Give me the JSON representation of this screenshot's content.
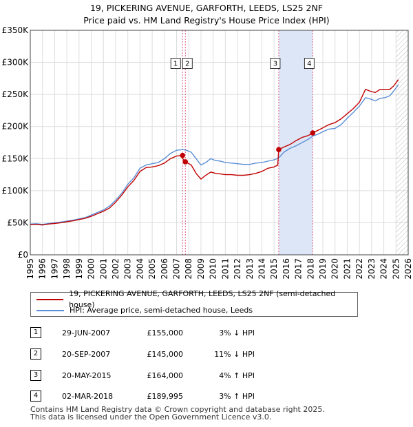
{
  "title_line1": "19, PICKERING AVENUE, GARFORTH, LEEDS, LS25 2NF",
  "title_line2": "Price paid vs. HM Land Registry's House Price Index (HPI)",
  "colors": {
    "property_line": "#c00000",
    "hpi_line": "#5b8fd6",
    "shade": "#dde6f7",
    "vline": "#e06080",
    "grid": "#dddddd",
    "hatch": "#bbbbbb"
  },
  "chart_data": {
    "type": "line",
    "title": "19, PICKERING AVENUE, GARFORTH, LEEDS, LS25 2NF",
    "subtitle": "Price paid vs. HM Land Registry's House Price Index (HPI)",
    "xlabel": "",
    "ylabel": "",
    "xlim": [
      1995,
      2026
    ],
    "ylim": [
      0,
      350000
    ],
    "x_ticks": [
      1995,
      1996,
      1997,
      1998,
      1999,
      2000,
      2001,
      2002,
      2003,
      2004,
      2005,
      2006,
      2007,
      2008,
      2009,
      2010,
      2011,
      2012,
      2013,
      2014,
      2015,
      2016,
      2017,
      2018,
      2019,
      2020,
      2021,
      2022,
      2023,
      2024,
      2025,
      2026
    ],
    "y_ticks": [
      {
        "value": 0,
        "label": "£0"
      },
      {
        "value": 50000,
        "label": "£50K"
      },
      {
        "value": 100000,
        "label": "£100K"
      },
      {
        "value": 150000,
        "label": "£150K"
      },
      {
        "value": 200000,
        "label": "£200K"
      },
      {
        "value": 250000,
        "label": "£250K"
      },
      {
        "value": 300000,
        "label": "£300K"
      },
      {
        "value": 350000,
        "label": "£350K"
      }
    ],
    "grid": true,
    "shaded_range": [
      2015.38,
      2018.17
    ],
    "forecast_hatch_from": 2025.0,
    "series": [
      {
        "name": "HPI: Average price, semi-detached house, Leeds",
        "x": [
          1995,
          1995.5,
          1996,
          1996.5,
          1997,
          1997.5,
          1998,
          1998.5,
          1999,
          1999.5,
          2000,
          2000.5,
          2001,
          2001.5,
          2002,
          2002.5,
          2003,
          2003.5,
          2004,
          2004.5,
          2005,
          2005.5,
          2006,
          2006.5,
          2007,
          2007.5,
          2007.8,
          2008.2,
          2008.6,
          2009,
          2009.4,
          2009.8,
          2010.2,
          2010.6,
          2011,
          2011.5,
          2012,
          2012.5,
          2013,
          2013.5,
          2014,
          2014.5,
          2015,
          2015.38,
          2015.8,
          2016.3,
          2016.8,
          2017.3,
          2017.8,
          2018.17,
          2018.6,
          2019,
          2019.5,
          2020,
          2020.5,
          2021,
          2021.5,
          2022,
          2022.5,
          2022.9,
          2023.3,
          2023.7,
          2024.1,
          2024.5,
          2024.8,
          2025.2
        ],
        "values": [
          48000,
          48500,
          47500,
          49000,
          50000,
          51000,
          52500,
          54000,
          56000,
          58000,
          62000,
          66000,
          70000,
          76000,
          85000,
          96000,
          110000,
          120000,
          135000,
          140000,
          142000,
          144000,
          150000,
          158000,
          163000,
          164000,
          163000,
          160000,
          150000,
          140000,
          144000,
          150000,
          147000,
          146000,
          144000,
          143000,
          142000,
          141000,
          141000,
          143000,
          144000,
          146000,
          148000,
          151000,
          160000,
          166000,
          170000,
          175000,
          180000,
          185000,
          188000,
          192000,
          196000,
          197000,
          203000,
          213000,
          222000,
          232000,
          245000,
          243000,
          240000,
          244000,
          245000,
          248000,
          255000,
          265000
        ]
      },
      {
        "name": "19, PICKERING AVENUE, GARFORTH, LEEDS, LS25 2NF (semi-detached house)",
        "x": [
          1995,
          1995.5,
          1996,
          1996.5,
          1997,
          1997.5,
          1998,
          1998.5,
          1999,
          1999.5,
          2000,
          2000.5,
          2001,
          2001.5,
          2002,
          2002.5,
          2003,
          2003.5,
          2004,
          2004.5,
          2005,
          2005.5,
          2006,
          2006.5,
          2007,
          2007.49,
          2007.5,
          2007.72,
          2008.2,
          2008.6,
          2009,
          2009.4,
          2009.8,
          2010.2,
          2010.6,
          2011,
          2011.5,
          2012,
          2012.5,
          2013,
          2013.5,
          2014,
          2014.5,
          2015,
          2015.3,
          2015.38,
          2015.8,
          2016.3,
          2016.8,
          2017.3,
          2017.8,
          2018.17,
          2018.6,
          2019,
          2019.5,
          2020,
          2020.5,
          2021,
          2021.5,
          2022,
          2022.5,
          2022.9,
          2023.3,
          2023.7,
          2024.1,
          2024.5,
          2024.8,
          2025.2
        ],
        "values": [
          47000,
          47500,
          46500,
          48000,
          49000,
          50000,
          51500,
          53000,
          55000,
          57000,
          60000,
          64000,
          68000,
          73000,
          82000,
          93000,
          106000,
          116000,
          130000,
          136000,
          137000,
          139000,
          143000,
          150000,
          154000,
          155000,
          150000,
          145000,
          140000,
          127000,
          118000,
          124000,
          129000,
          127000,
          126000,
          125000,
          125000,
          124000,
          124000,
          125000,
          127000,
          130000,
          135000,
          137000,
          140000,
          164000,
          168000,
          172000,
          178000,
          183000,
          186000,
          189995,
          194000,
          198000,
          203000,
          206000,
          212000,
          220000,
          228000,
          238000,
          258000,
          255000,
          253000,
          258000,
          258000,
          258000,
          263000,
          273000
        ]
      }
    ],
    "markers": [
      {
        "id": "1",
        "x": 2007.49,
        "value": 155000,
        "label_value": 300000
      },
      {
        "id": "2",
        "x": 2007.72,
        "value": 145000,
        "label_value": 300000
      },
      {
        "id": "3",
        "x": 2015.38,
        "value": 164000,
        "label_value": 300000
      },
      {
        "id": "4",
        "x": 2018.17,
        "value": 189995,
        "label_value": 300000
      }
    ]
  },
  "legend": {
    "property": "19, PICKERING AVENUE, GARFORTH, LEEDS, LS25 2NF (semi-detached house)",
    "hpi": "HPI: Average price, semi-detached house, Leeds"
  },
  "sales": [
    {
      "id": "1",
      "date": "29-JUN-2007",
      "price": "£155,000",
      "hpi": "3% ↓ HPI"
    },
    {
      "id": "2",
      "date": "20-SEP-2007",
      "price": "£145,000",
      "hpi": "11% ↓ HPI"
    },
    {
      "id": "3",
      "date": "20-MAY-2015",
      "price": "£164,000",
      "hpi": "4% ↑ HPI"
    },
    {
      "id": "4",
      "date": "02-MAR-2018",
      "price": "£189,995",
      "hpi": "3% ↑ HPI"
    }
  ],
  "footer": {
    "line1": "Contains HM Land Registry data © Crown copyright and database right 2025.",
    "line2": "This data is licensed under the Open Government Licence v3.0."
  }
}
